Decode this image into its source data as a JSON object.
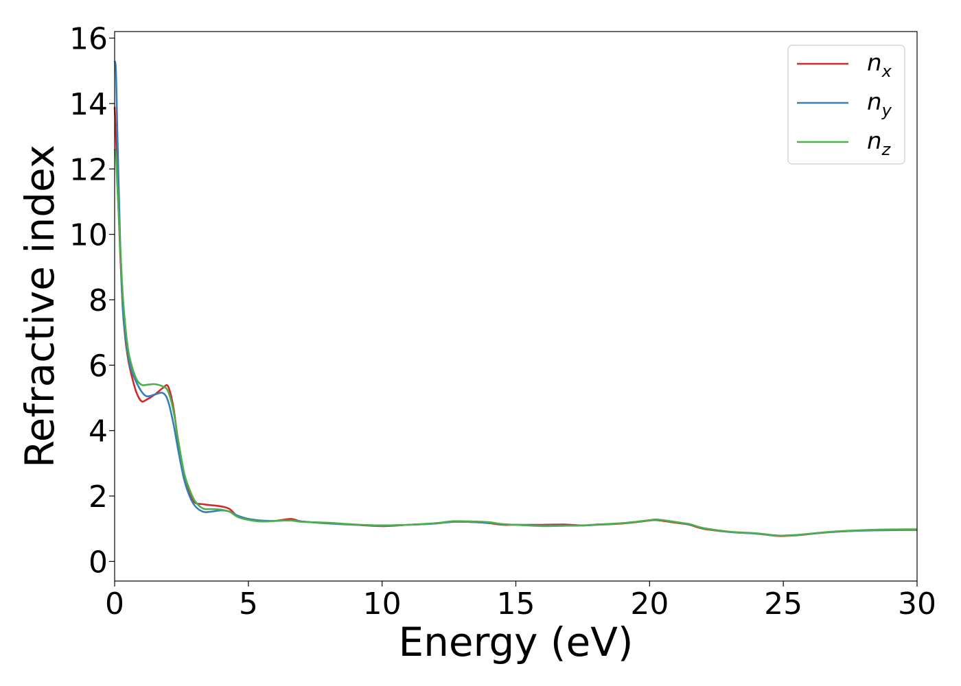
{
  "chart_data": {
    "type": "line",
    "title": "",
    "xlabel": "Energy (eV)",
    "ylabel": "Refractive index",
    "xlim": [
      0,
      30
    ],
    "ylim": [
      -0.6,
      16.2
    ],
    "xticks": [
      0,
      5,
      10,
      15,
      20,
      25,
      30
    ],
    "xtick_labels": [
      "0",
      "5",
      "10",
      "15",
      "20",
      "25",
      "30"
    ],
    "yticks": [
      0,
      2,
      4,
      6,
      8,
      10,
      12,
      14,
      16
    ],
    "ytick_labels": [
      "0",
      "2",
      "4",
      "6",
      "8",
      "10",
      "12",
      "14",
      "16"
    ],
    "grid": false,
    "legend_position": "top-right",
    "series": [
      {
        "name": "n",
        "subscript": "x",
        "color": "#d62728",
        "x": [
          0,
          0.05,
          0.1,
          0.2,
          0.3,
          0.4,
          0.5,
          0.6,
          0.8,
          1.0,
          1.2,
          1.5,
          1.8,
          2.0,
          2.2,
          2.4,
          2.6,
          2.8,
          3.0,
          3.3,
          3.6,
          4.0,
          4.3,
          4.6,
          5.0,
          5.5,
          6.0,
          6.6,
          7.0,
          8.0,
          9.0,
          10.0,
          11.0,
          12.0,
          12.7,
          13.5,
          14.0,
          14.5,
          15.0,
          16.0,
          16.8,
          17.5,
          18.0,
          19.0,
          20.0,
          20.3,
          21.0,
          21.5,
          22.0,
          23.0,
          24.0,
          24.8,
          25.5,
          26.5,
          27.5,
          28.5,
          29.5,
          30.0
        ],
        "y": [
          13.9,
          13.0,
          11.8,
          9.6,
          7.8,
          6.8,
          6.2,
          5.8,
          5.2,
          4.9,
          4.95,
          5.1,
          5.3,
          5.35,
          4.7,
          3.5,
          2.6,
          2.1,
          1.8,
          1.75,
          1.72,
          1.68,
          1.6,
          1.38,
          1.28,
          1.24,
          1.24,
          1.3,
          1.22,
          1.17,
          1.12,
          1.08,
          1.12,
          1.16,
          1.22,
          1.2,
          1.17,
          1.12,
          1.12,
          1.12,
          1.13,
          1.1,
          1.12,
          1.16,
          1.25,
          1.26,
          1.18,
          1.12,
          1.0,
          0.9,
          0.85,
          0.78,
          0.8,
          0.88,
          0.93,
          0.96,
          0.98,
          0.98
        ]
      },
      {
        "name": "n",
        "subscript": "y",
        "color": "#377eb8",
        "x": [
          0,
          0.05,
          0.1,
          0.2,
          0.3,
          0.4,
          0.5,
          0.6,
          0.8,
          1.0,
          1.2,
          1.5,
          1.8,
          2.0,
          2.2,
          2.4,
          2.6,
          2.8,
          3.0,
          3.3,
          3.6,
          4.0,
          4.3,
          4.6,
          5.0,
          5.5,
          6.0,
          6.6,
          7.0,
          8.0,
          9.0,
          10.0,
          11.0,
          12.0,
          12.7,
          13.5,
          14.0,
          14.5,
          15.0,
          16.0,
          16.8,
          17.5,
          18.0,
          19.0,
          20.0,
          20.3,
          21.0,
          21.5,
          22.0,
          23.0,
          24.0,
          24.8,
          25.5,
          26.5,
          27.5,
          28.5,
          29.5,
          30.0
        ],
        "y": [
          15.3,
          15.0,
          13.2,
          10.0,
          7.8,
          6.9,
          6.3,
          5.9,
          5.5,
          5.2,
          5.05,
          5.1,
          5.15,
          4.9,
          4.2,
          3.3,
          2.5,
          2.0,
          1.7,
          1.52,
          1.52,
          1.56,
          1.52,
          1.4,
          1.3,
          1.25,
          1.24,
          1.26,
          1.22,
          1.16,
          1.12,
          1.1,
          1.12,
          1.16,
          1.21,
          1.2,
          1.18,
          1.14,
          1.12,
          1.1,
          1.1,
          1.1,
          1.12,
          1.17,
          1.26,
          1.28,
          1.2,
          1.13,
          1.02,
          0.9,
          0.85,
          0.79,
          0.81,
          0.88,
          0.93,
          0.95,
          0.96,
          0.96
        ]
      },
      {
        "name": "n",
        "subscript": "z",
        "color": "#4daf4a",
        "x": [
          0,
          0.05,
          0.1,
          0.2,
          0.3,
          0.4,
          0.5,
          0.6,
          0.8,
          1.0,
          1.2,
          1.5,
          1.8,
          2.0,
          2.2,
          2.4,
          2.6,
          2.8,
          3.0,
          3.3,
          3.6,
          4.0,
          4.3,
          4.6,
          5.0,
          5.5,
          6.0,
          6.6,
          7.0,
          8.0,
          9.0,
          10.0,
          11.0,
          12.0,
          12.7,
          13.5,
          14.0,
          14.5,
          15.0,
          16.0,
          16.8,
          17.5,
          18.0,
          19.0,
          20.0,
          20.3,
          21.0,
          21.5,
          22.0,
          23.0,
          24.0,
          24.8,
          25.5,
          26.5,
          27.5,
          28.5,
          29.5,
          30.0
        ],
        "y": [
          12.6,
          12.4,
          11.5,
          9.8,
          8.2,
          7.2,
          6.5,
          6.1,
          5.6,
          5.4,
          5.4,
          5.42,
          5.35,
          5.2,
          4.6,
          3.6,
          2.7,
          2.2,
          1.85,
          1.62,
          1.6,
          1.58,
          1.52,
          1.36,
          1.27,
          1.22,
          1.24,
          1.25,
          1.21,
          1.18,
          1.13,
          1.1,
          1.12,
          1.17,
          1.23,
          1.22,
          1.2,
          1.14,
          1.12,
          1.08,
          1.09,
          1.1,
          1.13,
          1.17,
          1.26,
          1.28,
          1.2,
          1.14,
          1.02,
          0.91,
          0.86,
          0.79,
          0.81,
          0.89,
          0.94,
          0.97,
          0.98,
          0.98
        ]
      }
    ]
  }
}
